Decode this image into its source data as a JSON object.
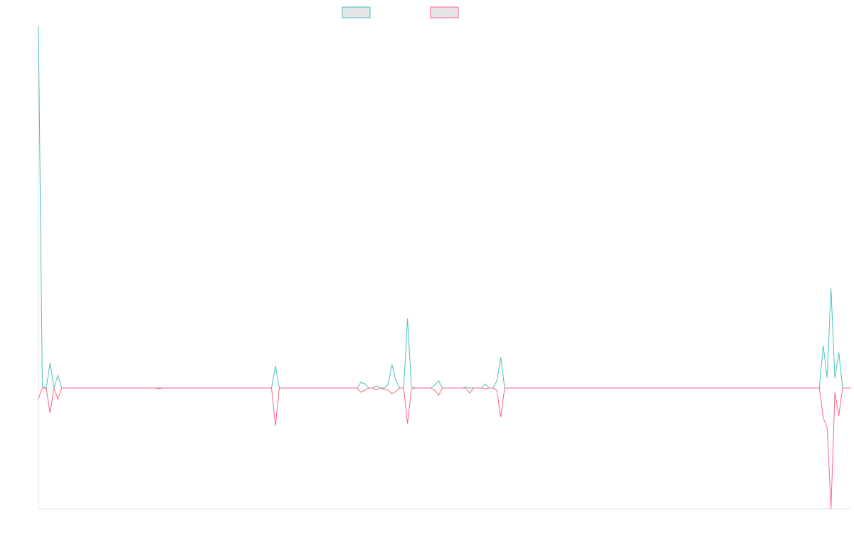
{
  "chart_data": {
    "type": "line",
    "categories": [
      null,
      null,
      null,
      null,
      null,
      null,
      null,
      null,
      null,
      null,
      null,
      null,
      null,
      null,
      null,
      null,
      null,
      null,
      null,
      null,
      null,
      null,
      null,
      null,
      null,
      null,
      null,
      null,
      null,
      null,
      null,
      null,
      null,
      null,
      null,
      null,
      null,
      null,
      null,
      null,
      null,
      null,
      null,
      null,
      null,
      null,
      null,
      null,
      null,
      null,
      null,
      null,
      null,
      null,
      null,
      null,
      null,
      null,
      null,
      null,
      null,
      null,
      null,
      null,
      null,
      null,
      null,
      null,
      null,
      null,
      null,
      null,
      null,
      null,
      null,
      null,
      null,
      null,
      null,
      null,
      null,
      null,
      null,
      null,
      null,
      null,
      null,
      null,
      null,
      null,
      null,
      null,
      null,
      null,
      null,
      null,
      null,
      null,
      null,
      null,
      null,
      null,
      null,
      null,
      null,
      null,
      null,
      null,
      null,
      null,
      null,
      null,
      null,
      null,
      null,
      null,
      null,
      null,
      null,
      null,
      null,
      null,
      null,
      null,
      null,
      null,
      null,
      null,
      null,
      null,
      null,
      null,
      null,
      null,
      null,
      null,
      null,
      null,
      null,
      null,
      null,
      null,
      null,
      null,
      null,
      null,
      null,
      null,
      null,
      null,
      null,
      null,
      null,
      null,
      null,
      null,
      null,
      null,
      null,
      null,
      null,
      null,
      null,
      null,
      null,
      null,
      null,
      null,
      null,
      null,
      null,
      null,
      null,
      null,
      null,
      null,
      null,
      null,
      null,
      null,
      null,
      null,
      null,
      null,
      null,
      null,
      null,
      null,
      null,
      null,
      null,
      null,
      null,
      null,
      null,
      null,
      null,
      null,
      null,
      null,
      null,
      null,
      null,
      null,
      null,
      null,
      null,
      null,
      null,
      null
    ],
    "series": [
      {
        "color": "#4bc0c0",
        "values": [
          509,
          2,
          0,
          35,
          0,
          18,
          0,
          0,
          0,
          0,
          0,
          0,
          0,
          0,
          0,
          0,
          0,
          0,
          0,
          0,
          0,
          0,
          0,
          0,
          0,
          0,
          0,
          0,
          0,
          0,
          0,
          0,
          0,
          0,
          0,
          0,
          0,
          0,
          0,
          0,
          0,
          0,
          0,
          0,
          0,
          0,
          0,
          0,
          0,
          0,
          0,
          0,
          0,
          0,
          0,
          0,
          0,
          0,
          0,
          0,
          0,
          31,
          0,
          0,
          0,
          0,
          0,
          0,
          0,
          0,
          0,
          0,
          0,
          0,
          0,
          0,
          0,
          0,
          0,
          0,
          0,
          0,
          0,
          8,
          6,
          0,
          0,
          3,
          0,
          0,
          5,
          33,
          10,
          0,
          0,
          98,
          2,
          0,
          0,
          0,
          0,
          0,
          4,
          10,
          0,
          0,
          0,
          0,
          0,
          0,
          1,
          0,
          0,
          0,
          0,
          6,
          0,
          0,
          10,
          43,
          0,
          0,
          0,
          0,
          0,
          0,
          0,
          0,
          0,
          0,
          0,
          0,
          0,
          0,
          0,
          0,
          0,
          0,
          0,
          0,
          0,
          0,
          0,
          0,
          0,
          0,
          0,
          0,
          0,
          0,
          0,
          0,
          0,
          0,
          0,
          0,
          0,
          0,
          0,
          0,
          0,
          0,
          0,
          0,
          0,
          0,
          0,
          0,
          0,
          0,
          0,
          0,
          0,
          0,
          0,
          0,
          0,
          0,
          0,
          0,
          0,
          0,
          0,
          0,
          0,
          0,
          0,
          0,
          0,
          0,
          0,
          0,
          0,
          0,
          0,
          0,
          0,
          0,
          0,
          0,
          0,
          0,
          60,
          14,
          140,
          14,
          50,
          0,
          0,
          0
        ]
      },
      {
        "color": "#ff6384",
        "values": [
          -15,
          0,
          0,
          -35,
          0,
          -16,
          0,
          0,
          0,
          0,
          0,
          0,
          0,
          0,
          0,
          0,
          0,
          0,
          0,
          0,
          0,
          0,
          0,
          0,
          0,
          0,
          0,
          0,
          0,
          0,
          0,
          -1,
          0,
          0,
          0,
          0,
          0,
          0,
          0,
          0,
          0,
          0,
          0,
          0,
          0,
          0,
          0,
          0,
          0,
          0,
          0,
          0,
          0,
          0,
          0,
          0,
          0,
          0,
          0,
          0,
          0,
          -53,
          0,
          0,
          0,
          0,
          0,
          0,
          0,
          0,
          0,
          0,
          0,
          0,
          0,
          0,
          0,
          0,
          0,
          0,
          0,
          0,
          0,
          -6,
          -3,
          0,
          0,
          -2,
          0,
          -2,
          -3,
          -8,
          -5,
          0,
          0,
          -50,
          -1,
          0,
          0,
          0,
          0,
          0,
          -3,
          -10,
          0,
          0,
          0,
          0,
          0,
          0,
          0,
          -7,
          0,
          0,
          0,
          -1,
          0,
          0,
          -3,
          -41,
          0,
          0,
          0,
          0,
          0,
          0,
          0,
          0,
          0,
          0,
          0,
          0,
          0,
          0,
          0,
          0,
          0,
          0,
          0,
          0,
          0,
          0,
          0,
          0,
          0,
          0,
          0,
          0,
          0,
          0,
          0,
          0,
          0,
          0,
          0,
          0,
          0,
          0,
          0,
          0,
          0,
          0,
          0,
          0,
          0,
          0,
          0,
          0,
          0,
          0,
          0,
          0,
          0,
          0,
          0,
          0,
          0,
          0,
          0,
          0,
          0,
          0,
          0,
          0,
          0,
          0,
          0,
          0,
          0,
          0,
          0,
          0,
          0,
          0,
          0,
          0,
          0,
          0,
          0,
          0,
          0,
          0,
          -42,
          -56,
          -170,
          -6,
          -39,
          0,
          0,
          0
        ]
      }
    ],
    "ylim": [
      -170,
      509
    ],
    "grid": false
  }
}
